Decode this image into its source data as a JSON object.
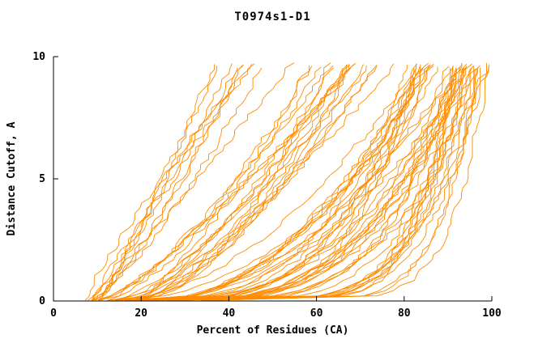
{
  "chart_data": {
    "type": "line",
    "title": "T0974s1-D1",
    "xlabel": "Percent of Residues (CA)",
    "ylabel": "Distance Cutoff, A",
    "xlim": [
      0,
      100
    ],
    "ylim": [
      0,
      10
    ],
    "x_ticks": [
      0,
      20,
      40,
      60,
      80,
      100
    ],
    "y_ticks": [
      0,
      5,
      10
    ],
    "grid": "off",
    "legend": "none",
    "line_color": "#ff8c00",
    "axis_color": "#000000",
    "curve_count": 75,
    "description": "Family of per-model distance-cutoff vs percent-of-residues (CA) accuracy curves; monotonically rising orange stepped lines from lower-left toward upper-right, densely bunched near the bottom between 20-90% and fanning upward to ~9.7 A",
    "curve_groups": [
      {
        "count": 10,
        "start": [
          5,
          11
        ],
        "end": [
          36,
          55
        ],
        "shape": [
          0.75,
          1.2
        ]
      },
      {
        "count": 18,
        "start": [
          9,
          20
        ],
        "end": [
          55,
          80
        ],
        "shape": [
          0.45,
          0.85
        ]
      },
      {
        "count": 27,
        "start": [
          12,
          30
        ],
        "end": [
          80,
          97
        ],
        "shape": [
          0.25,
          0.55
        ]
      },
      {
        "count": 20,
        "start": [
          15,
          38
        ],
        "end": [
          90,
          100
        ],
        "shape": [
          0.12,
          0.3
        ]
      }
    ],
    "y_top_of_curves": [
      9.5,
      9.75
    ],
    "seed": 7
  }
}
